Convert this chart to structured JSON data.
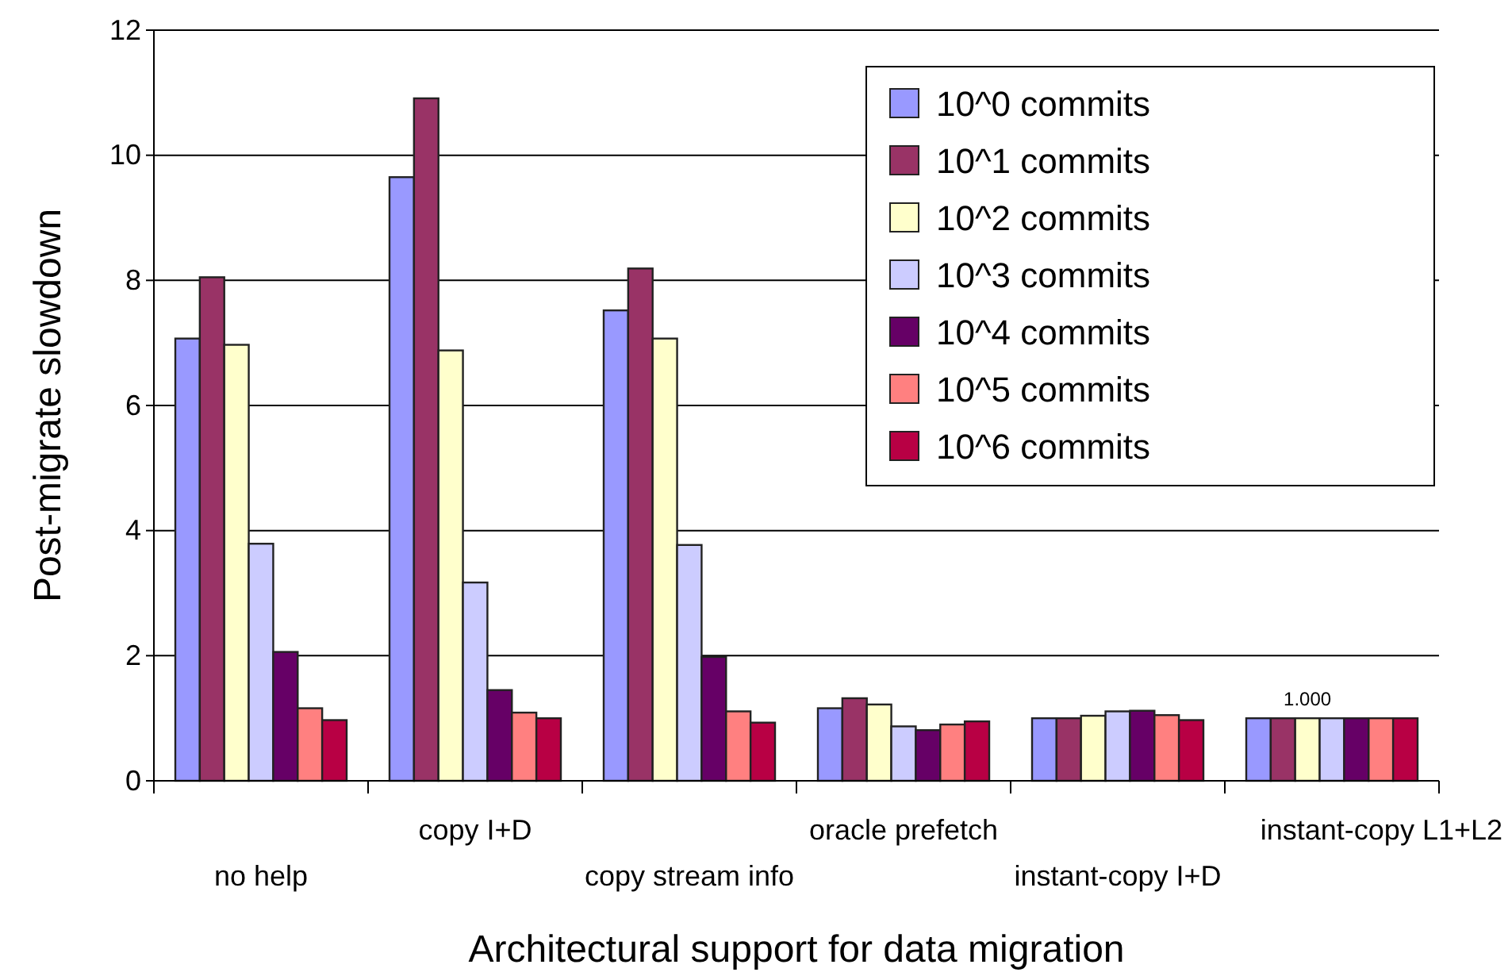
{
  "chart_data": {
    "type": "bar",
    "xlabel": "Architectural support for data migration",
    "ylabel": "Post-migrate slowdown",
    "categories": [
      "no help",
      "copy I+D",
      "copy stream info",
      "oracle prefetch",
      "instant-copy I+D",
      "instant-copy L1+L2"
    ],
    "series": [
      {
        "name": "10^0 commits",
        "color": "#9999ff",
        "values": [
          7.07,
          9.65,
          7.52,
          1.16,
          1.0,
          1.0
        ]
      },
      {
        "name": "10^1 commits",
        "color": "#993366",
        "values": [
          8.05,
          10.91,
          8.19,
          1.32,
          1.0,
          1.0
        ]
      },
      {
        "name": "10^2 commits",
        "color": "#ffffcc",
        "values": [
          6.97,
          6.88,
          7.07,
          1.22,
          1.04,
          1.0
        ],
        "value_labels": [
          null,
          null,
          null,
          null,
          null,
          "1.000"
        ]
      },
      {
        "name": "10^3 commits",
        "color": "#ccccff",
        "values": [
          3.79,
          3.17,
          3.77,
          0.87,
          1.11,
          1.0
        ]
      },
      {
        "name": "10^4 commits",
        "color": "#660066",
        "values": [
          2.06,
          1.45,
          1.98,
          0.81,
          1.12,
          1.0
        ]
      },
      {
        "name": "10^5 commits",
        "color": "#ff8080",
        "values": [
          1.16,
          1.09,
          1.11,
          0.9,
          1.05,
          1.0
        ]
      },
      {
        "name": "10^6 commits",
        "color": "#b80044",
        "values": [
          0.97,
          1.0,
          0.93,
          0.95,
          0.97,
          1.0
        ]
      }
    ],
    "ylim": [
      0,
      12
    ],
    "yticks": [
      0,
      2,
      4,
      6,
      8,
      10,
      12
    ],
    "grid": "y",
    "legend": "top right"
  }
}
